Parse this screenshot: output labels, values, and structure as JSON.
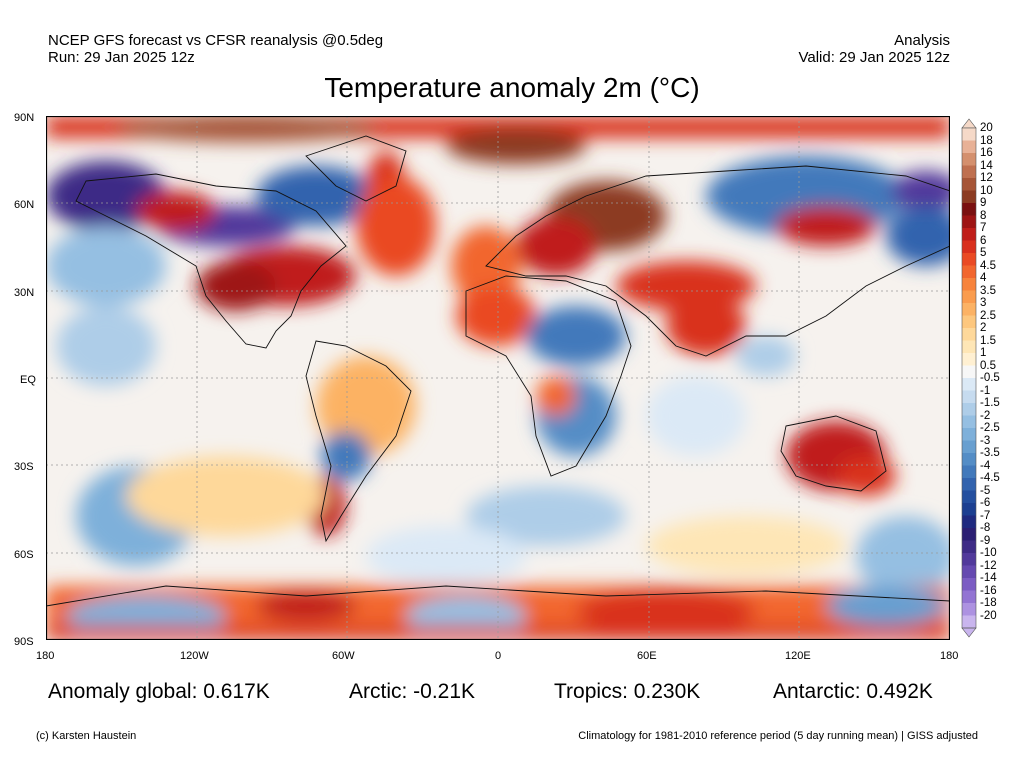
{
  "header": {
    "left_line1": "NCEP GFS forecast vs CFSR reanalysis @0.5deg",
    "left_line2": "Run: 29 Jan 2025 12z",
    "right_line1": "Analysis",
    "right_line2": "Valid: 29 Jan 2025 12z"
  },
  "title": "Temperature anomaly 2m (°C)",
  "axes": {
    "lat_labels": [
      "90N",
      "60N",
      "30N",
      "EQ",
      "30S",
      "60S",
      "90S"
    ],
    "lon_labels": [
      "180",
      "120W",
      "60W",
      "0",
      "60E",
      "120E",
      "180"
    ]
  },
  "colorbar": {
    "labels": [
      "20",
      "18",
      "16",
      "14",
      "12",
      "10",
      "9",
      "8",
      "7",
      "6",
      "5",
      "4.5",
      "4",
      "3.5",
      "3",
      "2.5",
      "2",
      "1.5",
      "1",
      "0.5",
      "-0.5",
      "-1",
      "-1.5",
      "-2",
      "-2.5",
      "-3",
      "-3.5",
      "-4",
      "-4.5",
      "-5",
      "-6",
      "-7",
      "-8",
      "-9",
      "-10",
      "-12",
      "-14",
      "-16",
      "-18",
      "-20"
    ],
    "colors": [
      "#f5d9c8",
      "#e8b196",
      "#d4906e",
      "#bf7050",
      "#a65537",
      "#8c3b22",
      "#7a1010",
      "#9e1414",
      "#c01e1a",
      "#d9301e",
      "#ea4a24",
      "#f2662e",
      "#f7833c",
      "#fa9c4e",
      "#fcb264",
      "#fdc77e",
      "#fed89a",
      "#fee6b6",
      "#fff0d2",
      "#f7f7f7",
      "#dbe9f6",
      "#c6dbef",
      "#aecde8",
      "#95bfe2",
      "#7eb0da",
      "#689fd0",
      "#548dc6",
      "#4279bb",
      "#3263ae",
      "#244f9f",
      "#1c3f91",
      "#1f2a80",
      "#2b1f73",
      "#3e2b86",
      "#51399b",
      "#6549b0",
      "#7b5cc3",
      "#9374d3",
      "#ad92e1",
      "#c9b5ee"
    ]
  },
  "stats": {
    "global": "Anomaly global: 0.617K",
    "arctic": "Arctic: -0.21K",
    "tropics": "Tropics: 0.230K",
    "antarctic": "Antarctic: 0.492K"
  },
  "footer": {
    "left": "(c) Karsten Haustein",
    "right": "Climatology for 1981-2010 reference period (5 day running mean) | GISS adjusted"
  }
}
